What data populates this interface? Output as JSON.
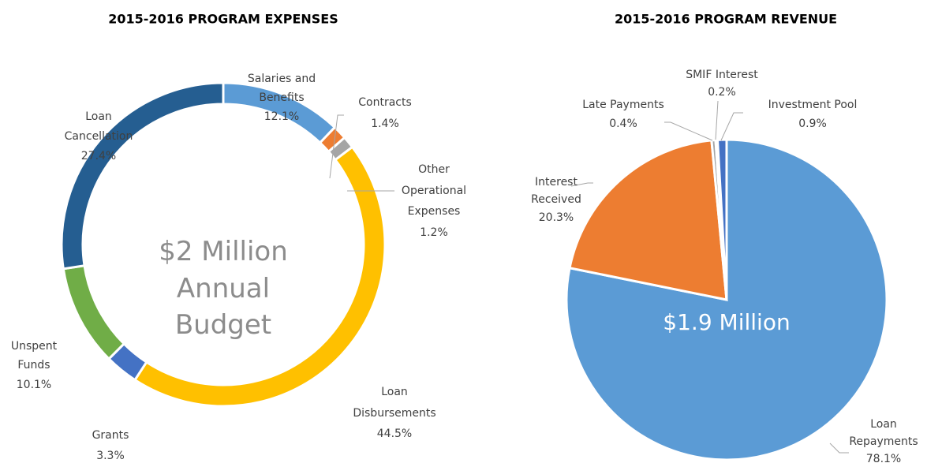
{
  "chart_data": [
    {
      "type": "donut",
      "title": "2015-2016 PROGRAM EXPENSES",
      "center_label": "$2 Million Annual Budget",
      "categories": [
        "Salaries and Benefits",
        "Contracts",
        "Other Operational Expenses",
        "Loan Disbursements",
        "Grants",
        "Unspent Funds",
        "Loan Cancellation"
      ],
      "values": [
        12.1,
        1.4,
        1.2,
        44.5,
        3.3,
        10.1,
        27.4
      ],
      "value_labels": [
        "12.1%",
        "1.4%",
        "1.2%",
        "44.5%",
        "3.3%",
        "10.1%",
        "27.4%"
      ],
      "colors": [
        "#5b9bd5",
        "#ed7d31",
        "#a5a5a5",
        "#ffc000",
        "#4472c4",
        "#70ad47",
        "#255e91"
      ]
    },
    {
      "type": "pie",
      "title": "2015-2016 PROGRAM REVENUE",
      "center_label": "$1.9 Million",
      "categories": [
        "Loan Repayments",
        "Interest Received",
        "Late Payments",
        "SMIF Interest",
        "Investment Pool"
      ],
      "values": [
        78.1,
        20.3,
        0.4,
        0.2,
        0.9
      ],
      "value_labels": [
        "78.1%",
        "20.3%",
        "0.4%",
        "0.2%",
        "0.9%"
      ],
      "colors": [
        "#5b9bd5",
        "#ed7d31",
        "#a5a5a5",
        "#ffc000",
        "#4472c4"
      ]
    }
  ]
}
